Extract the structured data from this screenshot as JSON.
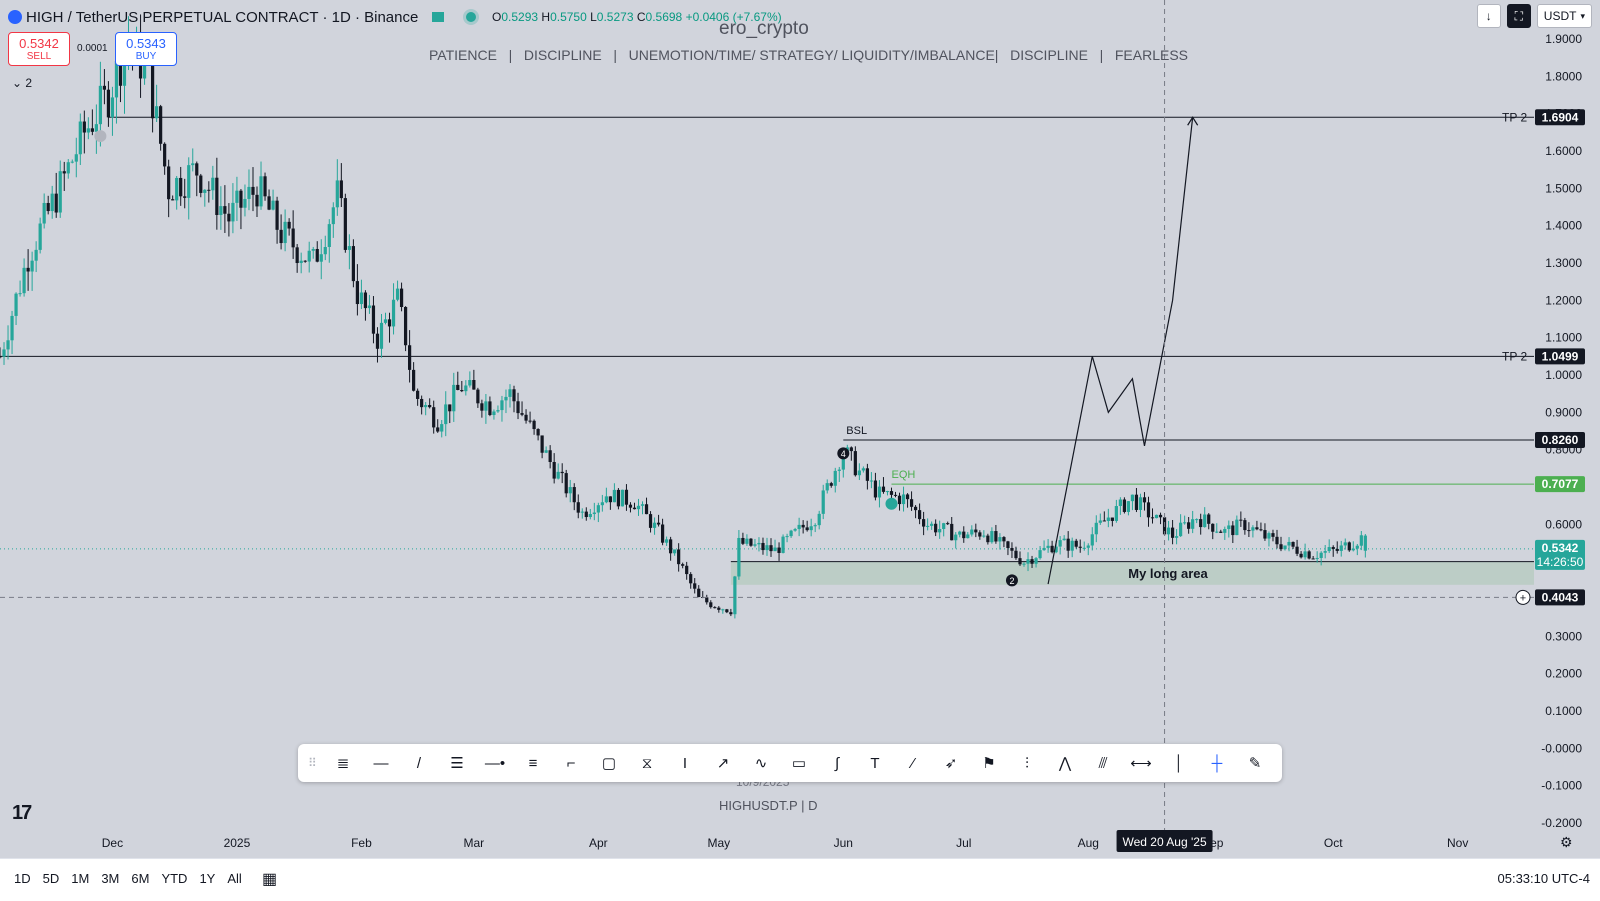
{
  "header": {
    "symbol_title": "HIGH / TetherUS PERPETUAL CONTRACT · 1D · Binance",
    "ohlc": {
      "o_label": "O",
      "o": "0.5293",
      "h_label": "H",
      "h": "0.5750",
      "l_label": "L",
      "l": "0.5273",
      "c_label": "C",
      "c": "0.5698",
      "change": "+0.0406 (+7.67%)"
    },
    "sell_price": "0.5342",
    "sell_label": "SELL",
    "buy_price": "0.5343",
    "buy_label": "BUY",
    "spread": "0.0001",
    "indicators_count": "2"
  },
  "watermark": {
    "title": "ero_crypto",
    "subtitle": "PATIENCE   |   DISCIPLINE   |   UNEMOTION/TIME/ STRATEGY/ LIQUIDITY/IMBALANCE|   DISCIPLINE   |   FEARLESS",
    "date": "10/9/2025",
    "symbol": "HIGHUSDT.P | D"
  },
  "top_right": {
    "download_icon": "download-icon",
    "fullscreen_icon": "fullscreen-icon",
    "currency": "USDT"
  },
  "toolbar_icons": [
    "fib-retracement-icon",
    "horizontal-line-icon",
    "trend-line-icon",
    "parallel-channel-icon",
    "horizontal-ray-icon",
    "fib-extension-icon",
    "callout-icon",
    "rectangle-icon",
    "long-short-icon",
    "price-range-icon",
    "arrow-icon",
    "path-icon",
    "comment-icon",
    "curve-icon",
    "text-icon",
    "brush-icon",
    "arrow-marker-icon",
    "flag-icon",
    "pitchfork-icon",
    "pattern-icon",
    "forecast-icon",
    "date-range-icon",
    "vertical-line-icon",
    "crosshair-icon",
    "eraser-icon"
  ],
  "bottom": {
    "timeframes": [
      "1D",
      "5D",
      "1M",
      "3M",
      "6M",
      "YTD",
      "1Y",
      "All"
    ],
    "clock": "05:33:10 UTC-4"
  },
  "colors": {
    "up": "#26a69a",
    "down": "#131722",
    "background": "#d1d4dc",
    "zone": "#b9ccc3",
    "eqh": "#4caf50",
    "last_price": "#26a69a"
  },
  "chart_data": {
    "type": "candlestick",
    "interval": "1D",
    "y_axis": {
      "ticks": [
        "1.9000",
        "1.8000",
        "1.7000",
        "1.6000",
        "1.5000",
        "1.4000",
        "1.3000",
        "1.2000",
        "1.1000",
        "1.0000",
        "0.9000",
        "0.8000",
        "0.7000",
        "0.6000",
        "0.5000",
        "0.3000",
        "0.2000",
        "0.1000",
        "-0.0000",
        "-0.1000",
        "-0.2000"
      ],
      "range": [
        -0.22,
        1.97
      ]
    },
    "x_axis": {
      "ticks": [
        {
          "label": "Dec",
          "date": "2024-12-01"
        },
        {
          "label": "2025",
          "date": "2025-01-01"
        },
        {
          "label": "Feb",
          "date": "2025-02-01"
        },
        {
          "label": "Mar",
          "date": "2025-03-01"
        },
        {
          "label": "Apr",
          "date": "2025-04-01"
        },
        {
          "label": "May",
          "date": "2025-05-01"
        },
        {
          "label": "Jun",
          "date": "2025-06-01"
        },
        {
          "label": "Jul",
          "date": "2025-07-01"
        },
        {
          "label": "Aug",
          "date": "2025-08-01"
        },
        {
          "label": "Sep",
          "date": "2025-09-01"
        },
        {
          "label": "Oct",
          "date": "2025-10-01"
        },
        {
          "label": "Nov",
          "date": "2025-11-01"
        }
      ],
      "range": [
        "2024-11-03",
        "2025-11-20"
      ]
    },
    "close_path": [
      [
        "2024-11-03",
        1.05
      ],
      [
        "2024-11-10",
        1.32
      ],
      [
        "2024-11-17",
        1.48
      ],
      [
        "2024-11-24",
        1.65
      ],
      [
        "2024-11-30",
        1.75
      ],
      [
        "2024-12-05",
        1.9
      ],
      [
        "2024-12-10",
        1.8
      ],
      [
        "2024-12-15",
        1.5
      ],
      [
        "2024-12-22",
        1.55
      ],
      [
        "2024-12-30",
        1.42
      ],
      [
        "2025-01-06",
        1.5
      ],
      [
        "2025-01-12",
        1.38
      ],
      [
        "2025-01-20",
        1.3
      ],
      [
        "2025-01-26",
        1.48
      ],
      [
        "2025-01-31",
        1.22
      ],
      [
        "2025-02-05",
        1.1
      ],
      [
        "2025-02-10",
        1.2
      ],
      [
        "2025-02-12",
        1.1
      ],
      [
        "2025-02-14",
        0.95
      ],
      [
        "2025-02-20",
        0.88
      ],
      [
        "2025-02-26",
        0.97
      ],
      [
        "2025-03-05",
        0.92
      ],
      [
        "2025-03-10",
        0.95
      ],
      [
        "2025-03-15",
        0.86
      ],
      [
        "2025-03-22",
        0.73
      ],
      [
        "2025-03-28",
        0.63
      ],
      [
        "2025-04-03",
        0.68
      ],
      [
        "2025-04-10",
        0.66
      ],
      [
        "2025-04-16",
        0.58
      ],
      [
        "2025-04-21",
        0.5
      ],
      [
        "2025-04-26",
        0.4
      ],
      [
        "2025-05-01",
        0.38
      ],
      [
        "2025-05-04",
        0.37
      ],
      [
        "2025-05-06",
        0.55
      ],
      [
        "2025-05-15",
        0.53
      ],
      [
        "2025-05-25",
        0.62
      ],
      [
        "2025-06-01",
        0.8
      ],
      [
        "2025-06-05",
        0.74
      ],
      [
        "2025-06-10",
        0.68
      ],
      [
        "2025-06-16",
        0.67
      ],
      [
        "2025-06-22",
        0.6
      ],
      [
        "2025-06-30",
        0.57
      ],
      [
        "2025-07-06",
        0.58
      ],
      [
        "2025-07-12",
        0.53
      ],
      [
        "2025-07-16",
        0.5
      ],
      [
        "2025-07-24",
        0.55
      ],
      [
        "2025-07-30",
        0.54
      ],
      [
        "2025-08-06",
        0.62
      ],
      [
        "2025-08-12",
        0.67
      ],
      [
        "2025-08-16",
        0.63
      ],
      [
        "2025-08-22",
        0.57
      ],
      [
        "2025-08-28",
        0.62
      ],
      [
        "2025-09-04",
        0.58
      ],
      [
        "2025-09-09",
        0.6
      ],
      [
        "2025-09-15",
        0.56
      ],
      [
        "2025-09-20",
        0.54
      ],
      [
        "2025-09-26",
        0.52
      ],
      [
        "2025-10-02",
        0.53
      ],
      [
        "2025-10-09",
        0.5698
      ]
    ],
    "last_candle": {
      "date": "2025-10-09",
      "open": 0.5293,
      "high": 0.575,
      "low": 0.5273,
      "close": 0.5698
    },
    "levels": [
      {
        "label": "TP 2",
        "price": 1.6904,
        "price_label": "1.6904",
        "from": "2024-11-30"
      },
      {
        "label": "TP 2",
        "price": 1.0499,
        "price_label": "1.0499",
        "from": "2024-11-03"
      },
      {
        "label": "BSL",
        "price": 0.826,
        "price_label": "0.8260",
        "from": "2025-06-01"
      },
      {
        "label": "EQH",
        "price": 0.7077,
        "price_label": "0.7077",
        "from": "2025-06-13"
      }
    ],
    "current_price": {
      "price": 0.5342,
      "price_label": "0.5342",
      "countdown": "14:26:50"
    },
    "zone": {
      "label": "My long area",
      "top": 0.5,
      "bottom": 0.438,
      "from": "2025-05-04"
    },
    "crosshair": {
      "price": 0.4043,
      "price_label": "0.4043",
      "date": "2025-08-20",
      "date_label": "Wed 20 Aug '25"
    },
    "projection_path": [
      [
        "2025-07-22",
        0.44
      ],
      [
        "2025-08-02",
        1.05
      ],
      [
        "2025-08-06",
        0.9
      ],
      [
        "2025-08-12",
        0.99
      ],
      [
        "2025-08-15",
        0.81
      ],
      [
        "2025-08-22",
        1.2
      ],
      [
        "2025-08-27",
        1.6904
      ]
    ],
    "markers": [
      {
        "date": "2025-06-01",
        "price": 0.79,
        "label": "4"
      },
      {
        "date": "2025-06-13",
        "price": 0.655,
        "label": ""
      },
      {
        "date": "2025-07-13",
        "price": 0.45,
        "label": "2"
      },
      {
        "date": "2024-11-28",
        "price": 1.64,
        "label": ""
      }
    ]
  }
}
